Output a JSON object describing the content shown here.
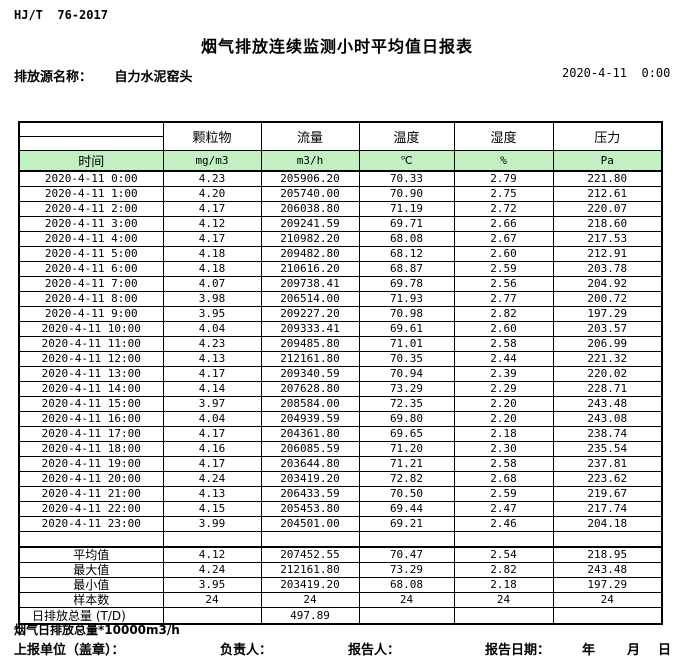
{
  "page": {
    "standard": "HJ/T  76-2017",
    "title": "烟气排放连续监测小时平均值日报表",
    "source_label": "排放源名称：",
    "source_name": "自力水泥窑头",
    "report_datetime": "2020-4-11  0:00"
  },
  "table": {
    "time_header": "时间",
    "pollutant_headers": [
      "颗粒物",
      "流量",
      "温度",
      "湿度",
      "压力"
    ],
    "unit_headers": [
      "mg/m3",
      "m3/h",
      "℃",
      "%",
      "Pa"
    ],
    "rows": [
      {
        "time": "2020-4-11  0:00",
        "values": [
          "4.23",
          "205906.20",
          "70.33",
          "2.79",
          "221.80"
        ]
      },
      {
        "time": "2020-4-11  1:00",
        "values": [
          "4.20",
          "205740.00",
          "70.90",
          "2.75",
          "212.61"
        ]
      },
      {
        "time": "2020-4-11  2:00",
        "values": [
          "4.17",
          "206038.80",
          "71.19",
          "2.72",
          "220.07"
        ]
      },
      {
        "time": "2020-4-11  3:00",
        "values": [
          "4.12",
          "209241.59",
          "69.71",
          "2.66",
          "218.60"
        ]
      },
      {
        "time": "2020-4-11  4:00",
        "values": [
          "4.17",
          "210982.20",
          "68.08",
          "2.67",
          "217.53"
        ]
      },
      {
        "time": "2020-4-11  5:00",
        "values": [
          "4.18",
          "209482.80",
          "68.12",
          "2.60",
          "212.91"
        ]
      },
      {
        "time": "2020-4-11  6:00",
        "values": [
          "4.18",
          "210616.20",
          "68.87",
          "2.59",
          "203.78"
        ]
      },
      {
        "time": "2020-4-11  7:00",
        "values": [
          "4.07",
          "209738.41",
          "69.78",
          "2.56",
          "204.92"
        ]
      },
      {
        "time": "2020-4-11  8:00",
        "values": [
          "3.98",
          "206514.00",
          "71.93",
          "2.77",
          "200.72"
        ]
      },
      {
        "time": "2020-4-11  9:00",
        "values": [
          "3.95",
          "209227.20",
          "70.98",
          "2.82",
          "197.29"
        ]
      },
      {
        "time": "2020-4-11 10:00",
        "values": [
          "4.04",
          "209333.41",
          "69.61",
          "2.60",
          "203.57"
        ]
      },
      {
        "time": "2020-4-11 11:00",
        "values": [
          "4.23",
          "209485.80",
          "71.01",
          "2.58",
          "206.99"
        ]
      },
      {
        "time": "2020-4-11 12:00",
        "values": [
          "4.13",
          "212161.80",
          "70.35",
          "2.44",
          "221.32"
        ]
      },
      {
        "time": "2020-4-11 13:00",
        "values": [
          "4.17",
          "209340.59",
          "70.94",
          "2.39",
          "220.02"
        ]
      },
      {
        "time": "2020-4-11 14:00",
        "values": [
          "4.14",
          "207628.80",
          "73.29",
          "2.29",
          "228.71"
        ]
      },
      {
        "time": "2020-4-11 15:00",
        "values": [
          "3.97",
          "208584.00",
          "72.35",
          "2.20",
          "243.48"
        ]
      },
      {
        "time": "2020-4-11 16:00",
        "values": [
          "4.04",
          "204939.59",
          "69.80",
          "2.20",
          "243.08"
        ]
      },
      {
        "time": "2020-4-11 17:00",
        "values": [
          "4.17",
          "204361.80",
          "69.65",
          "2.18",
          "238.74"
        ]
      },
      {
        "time": "2020-4-11 18:00",
        "values": [
          "4.16",
          "206085.59",
          "71.20",
          "2.30",
          "235.54"
        ]
      },
      {
        "time": "2020-4-11 19:00",
        "values": [
          "4.17",
          "203644.80",
          "71.21",
          "2.58",
          "237.81"
        ]
      },
      {
        "time": "2020-4-11 20:00",
        "values": [
          "4.24",
          "203419.20",
          "72.82",
          "2.68",
          "223.62"
        ]
      },
      {
        "time": "2020-4-11 21:00",
        "values": [
          "4.13",
          "206433.59",
          "70.50",
          "2.59",
          "219.67"
        ]
      },
      {
        "time": "2020-4-11 22:00",
        "values": [
          "4.15",
          "205453.80",
          "69.44",
          "2.47",
          "217.74"
        ]
      },
      {
        "time": "2020-4-11 23:00",
        "values": [
          "3.99",
          "204501.00",
          "69.21",
          "2.46",
          "204.18"
        ]
      }
    ],
    "summary": [
      {
        "label": "平均值",
        "values": [
          "4.12",
          "207452.55",
          "70.47",
          "2.54",
          "218.95"
        ]
      },
      {
        "label": "最大值",
        "values": [
          "4.24",
          "212161.80",
          "73.29",
          "2.82",
          "243.48"
        ]
      },
      {
        "label": "最小值",
        "values": [
          "3.95",
          "203419.20",
          "68.08",
          "2.18",
          "197.29"
        ]
      },
      {
        "label": "样本数",
        "values": [
          "24",
          "24",
          "24",
          "24",
          "24"
        ]
      },
      {
        "label": "日排放总量 (T/D)",
        "values": [
          "",
          "497.89",
          "",
          "",
          ""
        ]
      }
    ]
  },
  "footer": {
    "note": "烟气日排放总量*10000m3/h",
    "unit_label": "上报单位（盖章）：",
    "responsible_label": "负责人：",
    "reporter_label": "报告人：",
    "report_date_label": "报告日期：",
    "year_label": "年",
    "month_label": "月",
    "day_label": "日"
  },
  "colors": {
    "header_green": "#c2f0c2",
    "border_black": "#000000"
  }
}
